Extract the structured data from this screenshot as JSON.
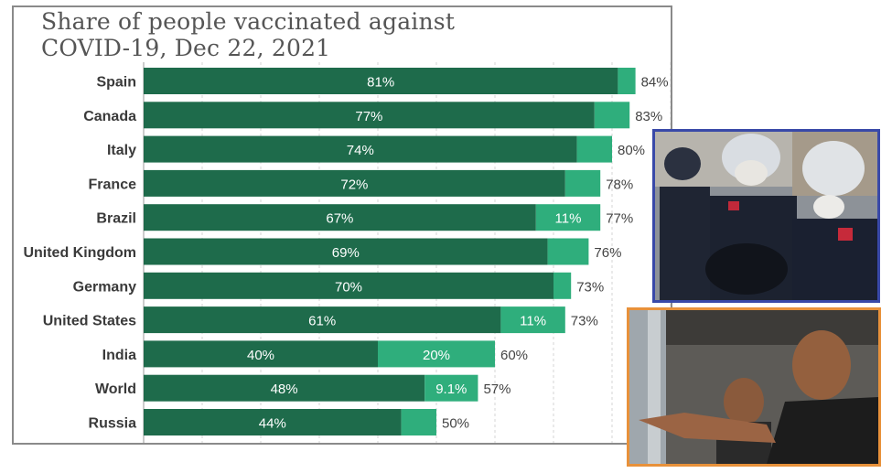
{
  "title_lines": [
    "Share of people vaccinated against",
    "COVID-19, Dec 22, 2021"
  ],
  "colors": {
    "fully_vaccinated": "#1e6b4b",
    "partly_vaccinated": "#2fae7c",
    "panel_border": "#8a8a8a",
    "photo_police_border": "#3949a8",
    "photo_man_border": "#e8913a"
  },
  "chart_data": {
    "type": "bar",
    "orientation": "horizontal",
    "stacked": true,
    "title": "Share of people vaccinated against COVID-19, Dec 22, 2021",
    "categories": [
      "Spain",
      "Canada",
      "Italy",
      "France",
      "Brazil",
      "United Kingdom",
      "Germany",
      "United States",
      "India",
      "World",
      "Russia"
    ],
    "series": [
      {
        "values": [
          81,
          77,
          74,
          72,
          67,
          69,
          70,
          61,
          40,
          48,
          44
        ],
        "labels": [
          "81%",
          "77%",
          "74%",
          "72%",
          "67%",
          "69%",
          "70%",
          "61%",
          "40%",
          "48%",
          "44%"
        ]
      },
      {
        "values": [
          3,
          6,
          6,
          6,
          11,
          7,
          3,
          11,
          20,
          9.1,
          6
        ],
        "labels": [
          "",
          "",
          "",
          "",
          "11%",
          "",
          "",
          "11%",
          "20%",
          "9.1%",
          ""
        ]
      }
    ],
    "totals": [
      "84%",
      "83%",
      "80%",
      "78%",
      "77%",
      "76%",
      "73%",
      "73%",
      "60%",
      "57%",
      "50%"
    ],
    "xlim": [
      0,
      100
    ],
    "grid": true,
    "legend": "none"
  },
  "photos": [
    {
      "name": "police-photo",
      "icon": "police-officers-photo"
    },
    {
      "name": "man-pointing-photo",
      "icon": "man-pointing-photo"
    }
  ]
}
